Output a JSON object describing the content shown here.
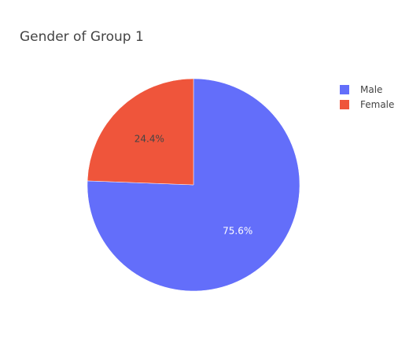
{
  "chart_data": {
    "type": "pie",
    "title": "Gender of Group 1",
    "labels": [
      "Male",
      "Female"
    ],
    "values": [
      75.6,
      24.4
    ],
    "value_labels": [
      "75.6%",
      "24.4%"
    ],
    "colors": [
      "#636efa",
      "#ef553b"
    ],
    "label_colors": [
      "#ffffff",
      "#444444"
    ],
    "direction": "clockwise",
    "start_angle_deg": 90,
    "legend": "top-right"
  }
}
